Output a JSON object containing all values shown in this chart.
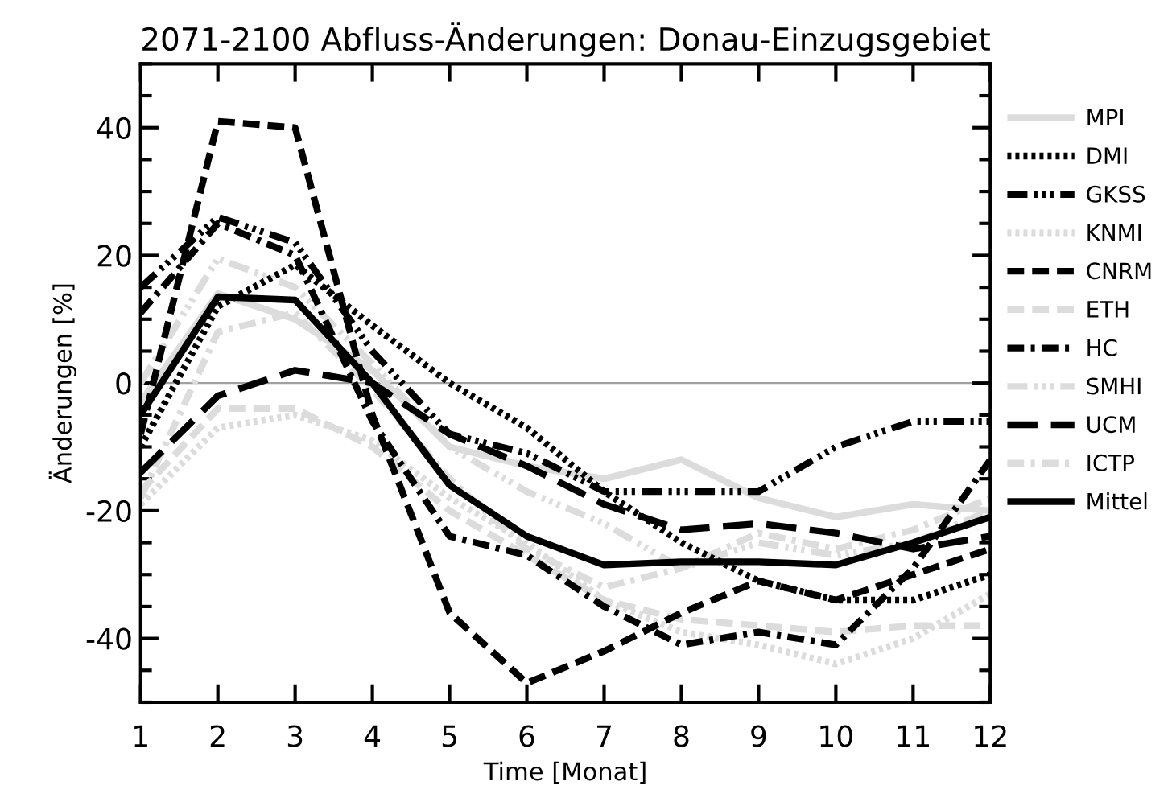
{
  "chart_data": {
    "type": "line",
    "title": "2071-2100 Abfluss-Änderungen: Donau-Einzugsgebiet",
    "xlabel": "Time [Monat]",
    "ylabel": "Änderungen [%]",
    "x": [
      1,
      2,
      3,
      4,
      5,
      6,
      7,
      8,
      9,
      10,
      11,
      12
    ],
    "xlim": [
      1,
      12
    ],
    "xticks": [
      1,
      2,
      3,
      4,
      5,
      6,
      7,
      8,
      9,
      10,
      11,
      12
    ],
    "ylim": [
      -50,
      50
    ],
    "yticks": [
      {
        "value": -50,
        "label": null
      },
      {
        "value": -45,
        "label": null
      },
      -40,
      {
        "value": -35,
        "label": null
      },
      {
        "value": -30,
        "label": null
      },
      {
        "value": -25,
        "label": null
      },
      -20,
      {
        "value": -15,
        "label": null
      },
      {
        "value": -10,
        "label": null
      },
      {
        "value": -5,
        "label": null
      },
      0,
      {
        "value": 5,
        "label": null
      },
      {
        "value": 10,
        "label": null
      },
      {
        "value": 15,
        "label": null
      },
      20,
      {
        "value": 25,
        "label": null
      },
      {
        "value": 30,
        "label": null
      },
      {
        "value": 35,
        "label": null
      },
      40,
      {
        "value": 45,
        "label": null
      },
      {
        "value": 50,
        "label": null
      }
    ],
    "ref_lines": [
      {
        "axis": "y",
        "value": 0,
        "color": "#a0a0a0",
        "line_style": "solid"
      }
    ],
    "legend": "right",
    "grid": false,
    "marker": "none",
    "series": [
      {
        "name": "MPI",
        "color": "#dcdcdc",
        "line_style": "solid",
        "values": [
          -3,
          14,
          10,
          2,
          -10,
          -13,
          -15,
          -12,
          -18,
          -21,
          -19,
          -20
        ]
      },
      {
        "name": "DMI",
        "color": "#000000",
        "line_style": "dotted",
        "values": [
          -10,
          12,
          18.5,
          9,
          0,
          -7,
          -17,
          -25,
          -31,
          -34,
          -34,
          -30
        ]
      },
      {
        "name": "GKSS",
        "color": "#000000",
        "line_style": "dashdotdot",
        "values": [
          15,
          26,
          22,
          5,
          -8,
          -11,
          -17,
          -17,
          -17,
          -10,
          -6,
          -6
        ]
      },
      {
        "name": "KNMI",
        "color": "#dcdcdc",
        "line_style": "dotted",
        "values": [
          -19,
          -7,
          -5,
          -9,
          -18,
          -25,
          -34,
          -39,
          -41,
          -44,
          -40,
          -33
        ]
      },
      {
        "name": "CNRM",
        "color": "#000000",
        "line_style": "dashed",
        "values": [
          -8,
          41,
          40,
          -5,
          -36,
          -47,
          -42,
          -36,
          -31,
          -34,
          -30,
          -26
        ]
      },
      {
        "name": "ETH",
        "color": "#dcdcdc",
        "line_style": "dashed",
        "values": [
          -17,
          -4,
          -4,
          -10,
          -20,
          -27,
          -34,
          -37,
          -38,
          -39,
          -38,
          -38
        ]
      },
      {
        "name": "HC",
        "color": "#000000",
        "line_style": "dashdot",
        "values": [
          11,
          25,
          20,
          -6,
          -24,
          -27,
          -35,
          -41,
          -39,
          -41,
          -29,
          -12
        ]
      },
      {
        "name": "SMHI",
        "color": "#dcdcdc",
        "line_style": "dashdotdot",
        "values": [
          0,
          19.5,
          15,
          3,
          -10,
          -17,
          -22,
          -29,
          -25,
          -27,
          -25,
          -20
        ]
      },
      {
        "name": "UCM",
        "color": "#000000",
        "line_style": "longdash",
        "values": [
          -14,
          -2,
          2,
          0,
          -8,
          -13,
          -19,
          -23,
          -22,
          -23.5,
          -26,
          -24
        ]
      },
      {
        "name": "ICTP",
        "color": "#dcdcdc",
        "line_style": "dashdot",
        "values": [
          -18,
          8,
          11,
          -1,
          -15,
          -26,
          -32,
          -29,
          -23.5,
          -26,
          -23,
          -18
        ]
      },
      {
        "name": "Mittel",
        "color": "#000000",
        "line_style": "solid",
        "values": [
          -5,
          13.5,
          13,
          0,
          -16,
          -24,
          -28.5,
          -28,
          -28,
          -28.5,
          -25,
          -21
        ]
      }
    ]
  }
}
